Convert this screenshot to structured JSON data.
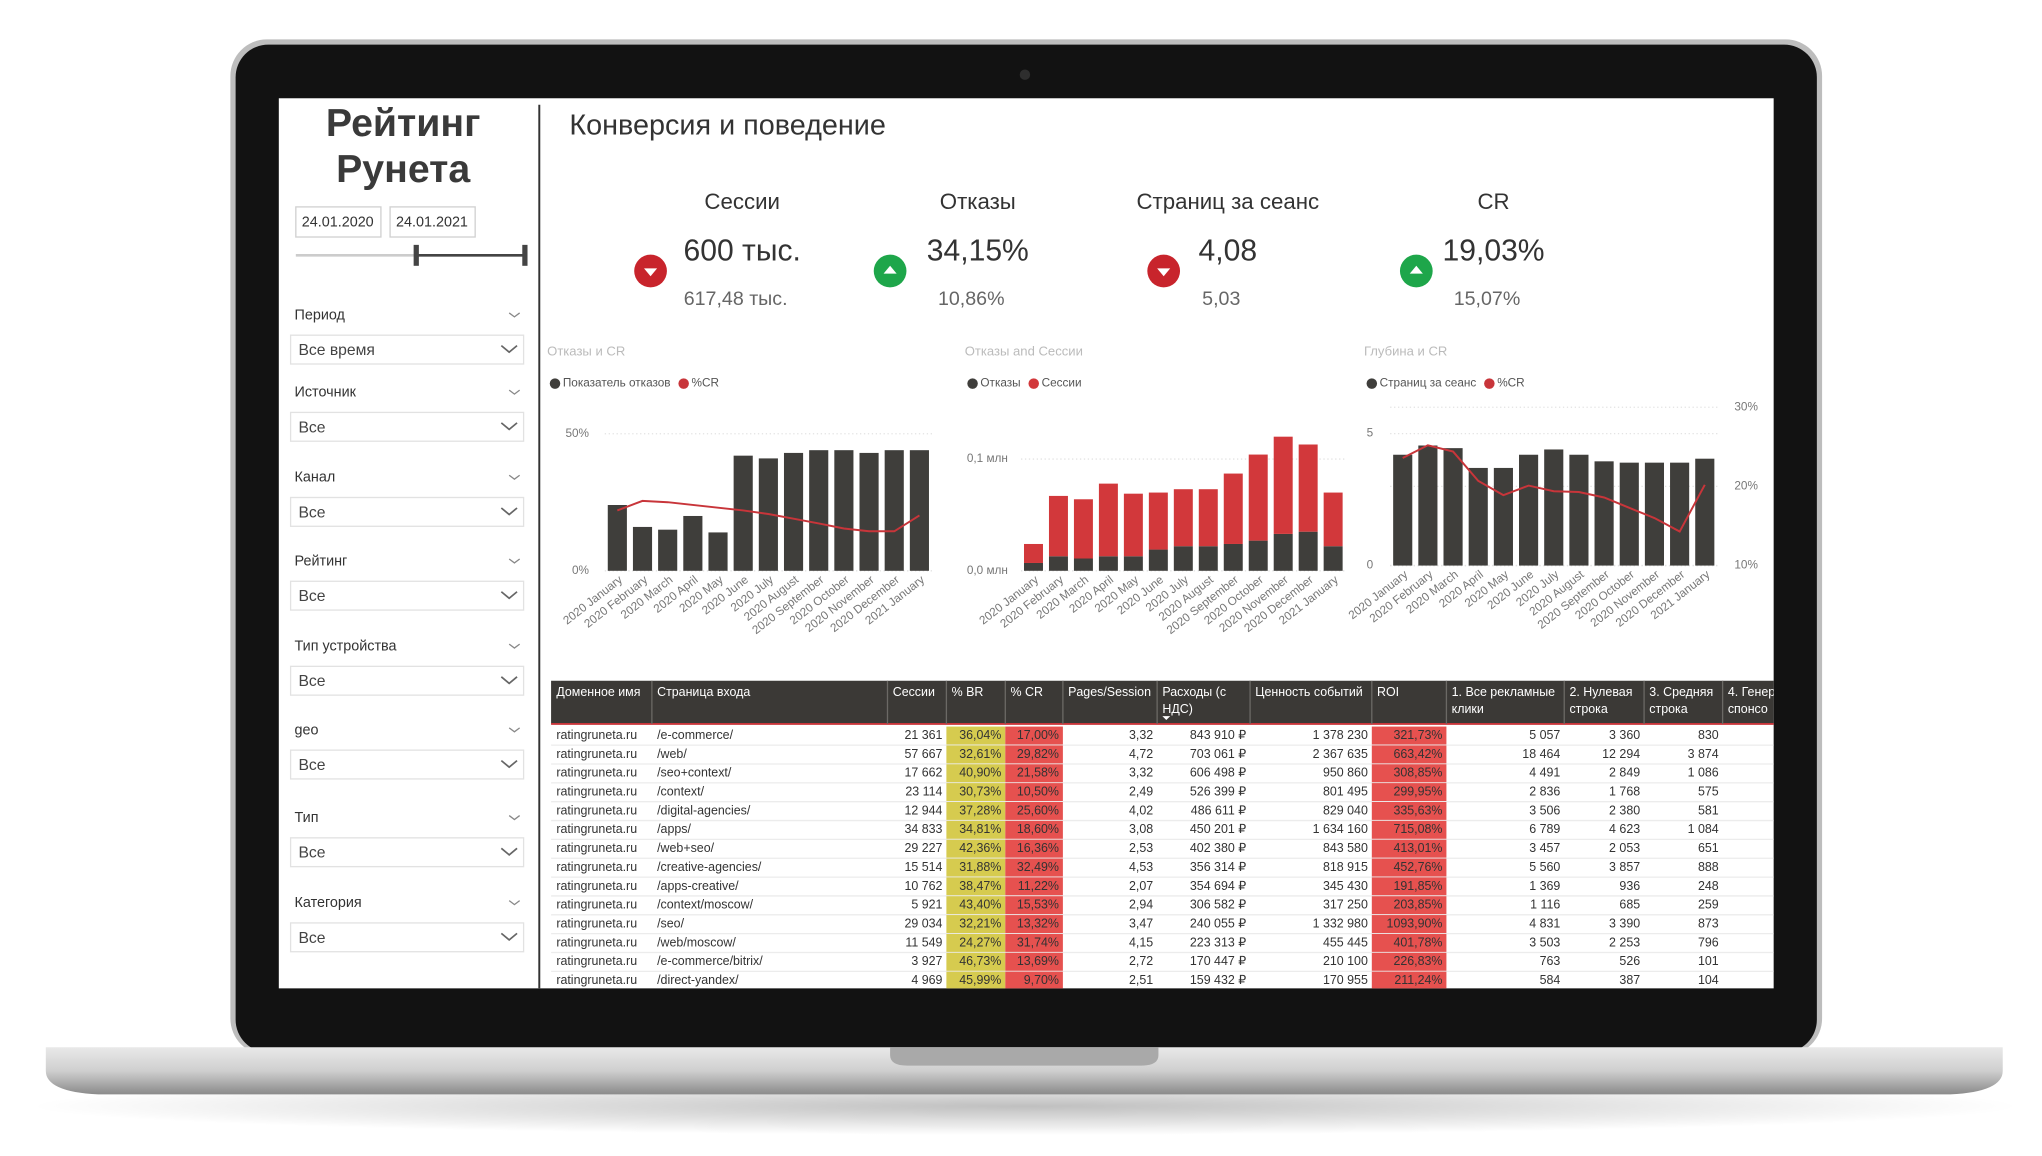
{
  "sidebar": {
    "title_lines": [
      "Рейтинг",
      "Рунета"
    ],
    "dates": [
      "24.01.2020",
      "24.01.2021"
    ],
    "filters": [
      {
        "label": "Период",
        "value": "Все время"
      },
      {
        "label": "Источник",
        "value": "Все"
      },
      {
        "label": "Канал",
        "value": "Все"
      },
      {
        "label": "Рейтинг",
        "value": "Все"
      },
      {
        "label": "Тип устройства",
        "value": "Все"
      },
      {
        "label": "geo",
        "value": "Все"
      },
      {
        "label": "Тип",
        "value": "Все"
      },
      {
        "label": "Категория",
        "value": "Все"
      }
    ]
  },
  "page_title": "Конверсия и поведение",
  "kpis": [
    {
      "label": "Сессии",
      "value": "600 тыс.",
      "previous": "617,48 тыс.",
      "trend": "down"
    },
    {
      "label": "Отказы",
      "value": "34,15%",
      "previous": "10,86%",
      "trend": "up"
    },
    {
      "label": "Страниц за сеанс",
      "value": "4,08",
      "previous": "5,03",
      "trend": "down"
    },
    {
      "label": "CR",
      "value": "19,03%",
      "previous": "15,07%",
      "trend": "up"
    }
  ],
  "chart_data": [
    {
      "type": "combo",
      "title": "Отказы и CR",
      "categories": [
        "2020 January",
        "2020 February",
        "2020 March",
        "2020 April",
        "2020 May",
        "2020 June",
        "2020 July",
        "2020 August",
        "2020 September",
        "2020 October",
        "2020 November",
        "2020 December",
        "2021 January"
      ],
      "ylim": [
        0,
        53
      ],
      "yticks": [
        {
          "value": 0,
          "label": "0%"
        },
        {
          "value": 50,
          "label": "50%"
        }
      ],
      "grid": true,
      "series": [
        {
          "name": "Показатель отказов",
          "kind": "bar",
          "color": "#3f3e3b",
          "values": [
            24,
            16,
            15,
            20,
            14,
            42,
            41,
            43,
            44,
            44,
            43,
            44,
            44
          ]
        },
        {
          "name": "%CR",
          "kind": "line",
          "color": "#c8353a",
          "values": [
            22,
            25.5,
            25,
            24,
            23,
            22,
            20.7,
            19,
            17.3,
            15.4,
            14.4,
            14.4,
            20.2
          ]
        }
      ]
    },
    {
      "type": "stacked_bar",
      "title": "Отказы and Сессии",
      "categories": [
        "2020 January",
        "2020 February",
        "2020 March",
        "2020 April",
        "2020 May",
        "2020 June",
        "2020 July",
        "2020 August",
        "2020 September",
        "2020 October",
        "2020 November",
        "2020 December",
        "2021 January"
      ],
      "ylim": [
        0,
        0.13
      ],
      "yticks": [
        {
          "value": 0,
          "label": "0,0 млн"
        },
        {
          "value": 0.1,
          "label": "0,1 млн"
        }
      ],
      "grid": true,
      "series": [
        {
          "name": "Отказы",
          "kind": "bar",
          "color": "#3f3e3b",
          "values": [
            0.007,
            0.013,
            0.011,
            0.013,
            0.013,
            0.019,
            0.022,
            0.022,
            0.024,
            0.027,
            0.033,
            0.035,
            0.022
          ]
        },
        {
          "name": "Сессии",
          "kind": "bar",
          "color": "#d2383b",
          "values": [
            0.017,
            0.054,
            0.053,
            0.065,
            0.056,
            0.051,
            0.051,
            0.051,
            0.063,
            0.077,
            0.087,
            0.078,
            0.048
          ]
        }
      ]
    },
    {
      "type": "combo",
      "title": "Глубина и CR",
      "categories": [
        "2020 January",
        "2020 February",
        "2020 March",
        "2020 April",
        "2020 May",
        "2020 June",
        "2020 July",
        "2020 August",
        "2020 September",
        "2020 October",
        "2020 November",
        "2020 December",
        "2021 January"
      ],
      "ylim": [
        0,
        6.3
      ],
      "yticks": [
        0,
        5
      ],
      "y2lim": [
        10,
        31
      ],
      "y2ticks": [
        {
          "value": 10,
          "label": "10%"
        },
        {
          "value": 20,
          "label": "20%"
        },
        {
          "value": 30,
          "label": "30%"
        }
      ],
      "grid": true,
      "series": [
        {
          "name": "Страниц за сеанс",
          "kind": "bar",
          "color": "#3f3e3b",
          "values": [
            4.2,
            4.55,
            4.45,
            3.7,
            3.7,
            4.2,
            4.4,
            4.2,
            3.95,
            3.9,
            3.9,
            3.9,
            4.05
          ]
        },
        {
          "name": "%CR",
          "kind": "line",
          "axis": "y2",
          "color": "#c8353a",
          "values": [
            23.6,
            25.2,
            24.4,
            20.7,
            18.9,
            20.1,
            19.4,
            19.3,
            18.6,
            17.3,
            16,
            14.3,
            20.2
          ]
        }
      ]
    }
  ],
  "table": {
    "columns": [
      [
        "Доменное имя"
      ],
      [
        "Страница входа"
      ],
      [
        "Сессии"
      ],
      [
        "% BR"
      ],
      [
        "% CR"
      ],
      [
        "Pages/Session"
      ],
      [
        "Расходы (с",
        "НДС)"
      ],
      [
        "Ценность событий"
      ],
      [
        "ROI"
      ],
      [
        "1. Все рекламные",
        "клики"
      ],
      [
        "2. Нулевая",
        "строка"
      ],
      [
        "3. Средняя",
        "строка"
      ],
      [
        "4. Генер",
        "спонсо"
      ]
    ],
    "rows": [
      [
        "ratingruneta.ru",
        "/e-commerce/",
        "21 361",
        "36,04%",
        "17,00%",
        "3,32",
        "843 910 ₽",
        "1 378 230",
        "321,73%",
        "5 057",
        "3 360",
        "830"
      ],
      [
        "ratingruneta.ru",
        "/web/",
        "57 667",
        "32,61%",
        "29,82%",
        "4,72",
        "703 061 ₽",
        "2 367 635",
        "663,42%",
        "18 464",
        "12 294",
        "3 874"
      ],
      [
        "ratingruneta.ru",
        "/seo+context/",
        "17 662",
        "40,90%",
        "21,58%",
        "3,32",
        "606 498 ₽",
        "950 860",
        "308,85%",
        "4 491",
        "2 849",
        "1 086"
      ],
      [
        "ratingruneta.ru",
        "/context/",
        "23 114",
        "30,73%",
        "10,50%",
        "2,49",
        "526 399 ₽",
        "801 495",
        "299,95%",
        "2 836",
        "1 768",
        "575"
      ],
      [
        "ratingruneta.ru",
        "/digital-agencies/",
        "12 944",
        "37,28%",
        "25,60%",
        "4,02",
        "486 611 ₽",
        "829 040",
        "335,63%",
        "3 506",
        "2 380",
        "581"
      ],
      [
        "ratingruneta.ru",
        "/apps/",
        "34 833",
        "34,81%",
        "18,60%",
        "3,08",
        "450 201 ₽",
        "1 634 160",
        "715,08%",
        "6 789",
        "4 623",
        "1 084"
      ],
      [
        "ratingruneta.ru",
        "/web+seo/",
        "29 227",
        "42,36%",
        "16,36%",
        "2,53",
        "402 380 ₽",
        "843 580",
        "413,01%",
        "3 457",
        "2 053",
        "651"
      ],
      [
        "ratingruneta.ru",
        "/creative-agencies/",
        "15 514",
        "31,88%",
        "32,49%",
        "4,53",
        "356 314 ₽",
        "818 915",
        "452,76%",
        "5 560",
        "3 857",
        "888"
      ],
      [
        "ratingruneta.ru",
        "/apps-creative/",
        "10 762",
        "38,47%",
        "11,22%",
        "2,07",
        "354 694 ₽",
        "345 430",
        "191,85%",
        "1 369",
        "936",
        "248"
      ],
      [
        "ratingruneta.ru",
        "/context/moscow/",
        "5 921",
        "43,40%",
        "15,53%",
        "2,94",
        "306 582 ₽",
        "317 250",
        "203,85%",
        "1 116",
        "685",
        "259"
      ],
      [
        "ratingruneta.ru",
        "/seo/",
        "29 034",
        "32,21%",
        "13,32%",
        "3,47",
        "240 055 ₽",
        "1 332 980",
        "1093,90%",
        "4 831",
        "3 390",
        "873"
      ],
      [
        "ratingruneta.ru",
        "/web/moscow/",
        "11 549",
        "24,27%",
        "31,74%",
        "4,15",
        "223 313 ₽",
        "455 445",
        "401,78%",
        "3 503",
        "2 253",
        "796"
      ],
      [
        "ratingruneta.ru",
        "/e-commerce/bitrix/",
        "3 927",
        "46,73%",
        "13,69%",
        "2,72",
        "170 447 ₽",
        "210 100",
        "226,83%",
        "763",
        "526",
        "101"
      ],
      [
        "ratingruneta.ru",
        "/direct-yandex/",
        "4 969",
        "45,99%",
        "9,70%",
        "2,51",
        "159 432 ₽",
        "170 955",
        "211,24%",
        "584",
        "387",
        "104"
      ]
    ]
  }
}
